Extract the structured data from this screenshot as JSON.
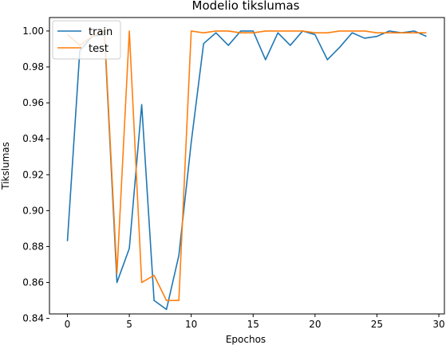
{
  "chart_data": {
    "type": "line",
    "title": "Modelio tikslumas",
    "xlabel": "Epochos",
    "ylabel": "Tikslumas",
    "xlim": [
      -1.45,
      30.45
    ],
    "ylim": [
      0.8425,
      1.0075
    ],
    "xticks": [
      0,
      5,
      10,
      15,
      20,
      25,
      30
    ],
    "yticks": [
      0.84,
      0.86,
      0.88,
      0.9,
      0.92,
      0.94,
      0.96,
      0.98,
      1.0
    ],
    "legend_position": "upper-left",
    "grid": false,
    "x": [
      0,
      1,
      2,
      3,
      4,
      5,
      6,
      7,
      8,
      9,
      10,
      11,
      12,
      13,
      14,
      15,
      16,
      17,
      18,
      19,
      20,
      21,
      22,
      23,
      24,
      25,
      26,
      27,
      28,
      29
    ],
    "series": [
      {
        "name": "train",
        "color": "#1f77b4",
        "values": [
          0.883,
          0.989,
          0.997,
          0.998,
          0.86,
          0.879,
          0.959,
          0.85,
          0.845,
          0.875,
          0.938,
          0.993,
          0.999,
          0.992,
          1.0,
          1.0,
          0.984,
          0.999,
          0.992,
          1.0,
          0.998,
          0.984,
          0.991,
          0.999,
          0.996,
          0.997,
          1.0,
          0.999,
          1.0,
          0.997
        ]
      },
      {
        "name": "test",
        "color": "#ff7f0e",
        "values": [
          0.998,
          0.992,
          0.997,
          1.0,
          0.865,
          1.0,
          0.86,
          0.864,
          0.85,
          0.85,
          1.0,
          0.999,
          1.0,
          1.0,
          0.999,
          0.999,
          1.0,
          1.0,
          1.0,
          1.0,
          0.999,
          0.999,
          1.0,
          1.0,
          1.0,
          0.999,
          0.999,
          0.999,
          0.999,
          0.999
        ]
      }
    ]
  }
}
